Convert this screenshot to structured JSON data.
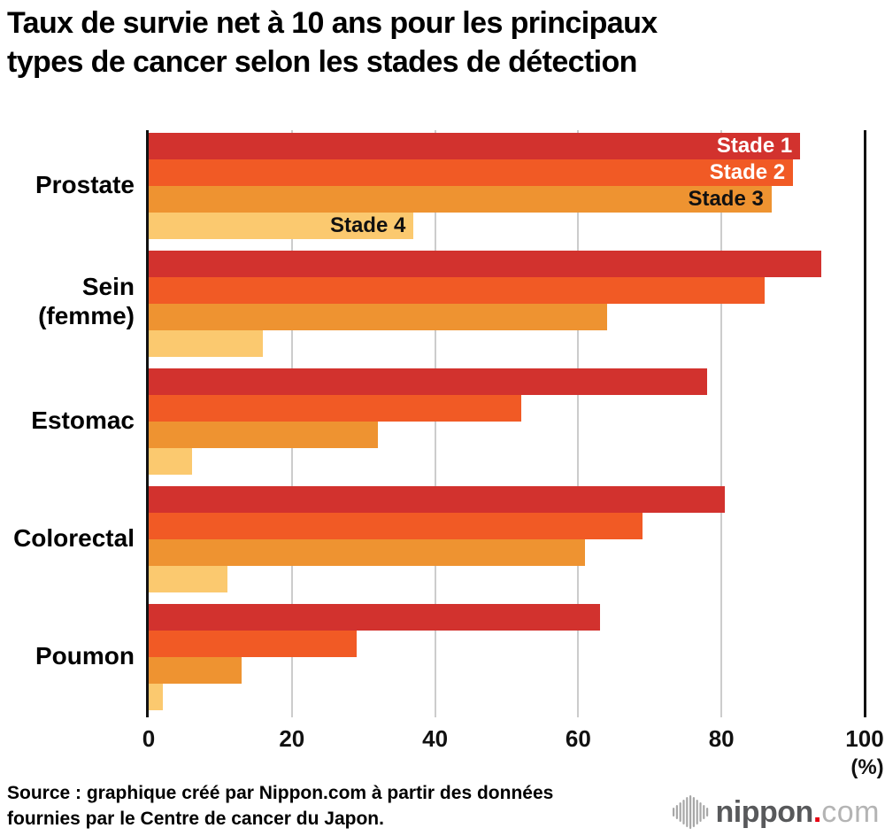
{
  "title_lines": [
    "Taux de survie net à 10 ans pour les principaux",
    "types de cancer selon les stades de détection"
  ],
  "chart_data": {
    "type": "bar",
    "orientation": "horizontal",
    "title": "Taux de survie net à 10 ans pour les principaux types de cancer selon les stades de détection",
    "categories": [
      "Prostate",
      "Sein\n(femme)",
      "Estomac",
      "Colorectal",
      "Poumon"
    ],
    "series": [
      {
        "name": "Stade 1",
        "color": "#d2322e",
        "label_color": "#ffffff",
        "values": [
          91,
          94,
          78,
          80.5,
          63
        ]
      },
      {
        "name": "Stade 2",
        "color": "#f15a25",
        "label_color": "#ffffff",
        "values": [
          90,
          86,
          52,
          69,
          29
        ]
      },
      {
        "name": "Stade 3",
        "color": "#ee9331",
        "label_color": "#111111",
        "values": [
          87,
          64,
          32,
          61,
          13
        ]
      },
      {
        "name": "Stade 4",
        "color": "#fbc96f",
        "label_color": "#111111",
        "values": [
          37,
          16,
          6,
          11,
          2
        ]
      }
    ],
    "x_ticks": [
      0,
      20,
      40,
      60,
      80,
      100
    ],
    "xlim": [
      0,
      100
    ],
    "x_unit": "(%)",
    "grid": true,
    "gridline_color": "#cccccc",
    "axis_color": "#111111",
    "legend_position": "inside-first-group-bars"
  },
  "source_lines": [
    "Source : graphique créé par Nippon.com à partir des données",
    "fournies par le Centre de cancer du Japon."
  ],
  "logo": {
    "name": "nippon",
    "dot": ".",
    "tld": "com",
    "icon_color": "#a7a7a7",
    "dot_color": "#e60012"
  }
}
